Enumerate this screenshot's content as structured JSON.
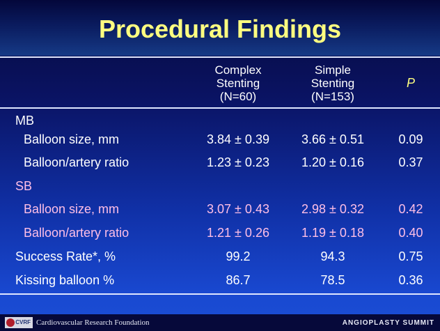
{
  "slide": {
    "title": "Procedural Findings",
    "columns": {
      "complex": [
        "Complex",
        "Stenting",
        "(N=60)"
      ],
      "simple": [
        "Simple",
        "Stenting",
        "(N=153)"
      ],
      "p": "P"
    },
    "rows": [
      {
        "label": "MB",
        "complex": "",
        "simple": "",
        "p": "",
        "style": "section"
      },
      {
        "label": "Balloon size, mm",
        "complex": "3.84 ± 0.39",
        "simple": "3.66 ± 0.51",
        "p": "0.09",
        "style": "indent"
      },
      {
        "label": "Balloon/artery ratio",
        "complex": "1.23 ± 0.23",
        "simple": "1.20 ± 0.16",
        "p": "0.37",
        "style": "indent"
      },
      {
        "label": "SB",
        "complex": "",
        "simple": "",
        "p": "",
        "style": "section-pink"
      },
      {
        "label": "Balloon size, mm",
        "complex": "3.07 ± 0.43",
        "simple": "2.98 ± 0.32",
        "p": "0.42",
        "style": "indent-pink"
      },
      {
        "label": "Balloon/artery ratio",
        "complex": "1.21 ± 0.26",
        "simple": "1.19 ± 0.18",
        "p": "0.40",
        "style": "indent-pink"
      },
      {
        "label": "Success Rate*, %",
        "complex": "99.2",
        "simple": "94.3",
        "p": "0.75",
        "style": "section"
      },
      {
        "label": "Kissing balloon %",
        "complex": "86.7",
        "simple": "78.5",
        "p": "0.36",
        "style": "section"
      }
    ]
  },
  "footer": {
    "logo_text": "CVRF",
    "foundation": "Cardiovascular Research Foundation",
    "summit": "ANGIOPLASTY SUMMIT"
  },
  "colors": {
    "title": "#ffff80",
    "pink_text": "#ffbfe6",
    "text": "#ffffff"
  }
}
